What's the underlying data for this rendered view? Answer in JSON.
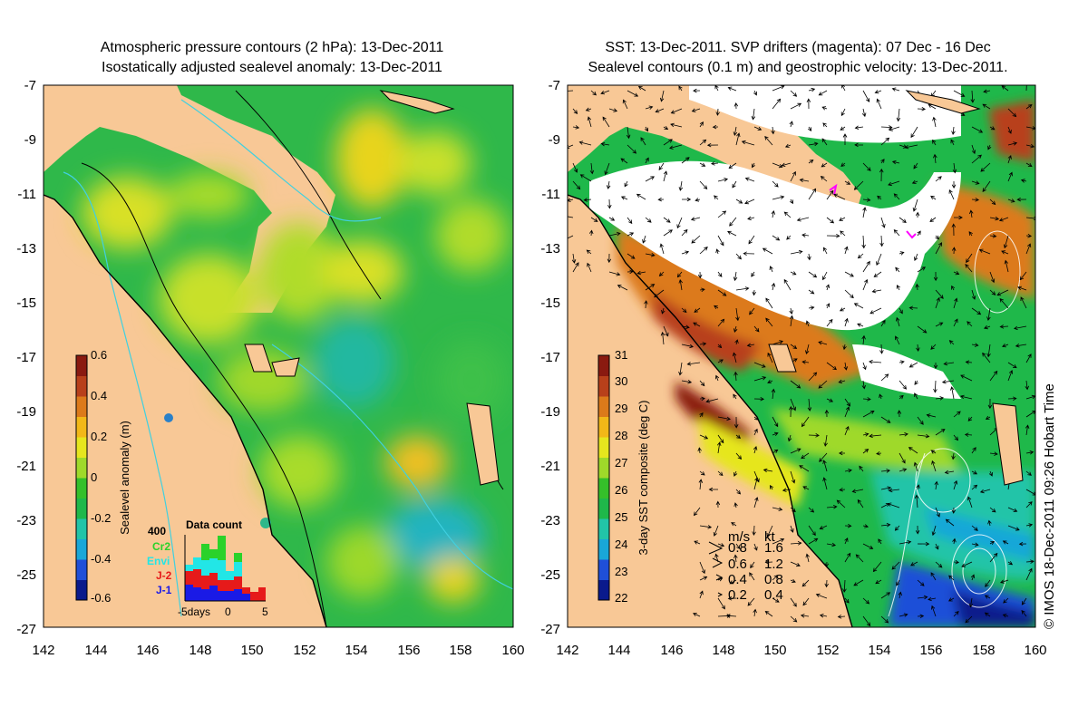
{
  "left_panel": {
    "title_line1": "Atmospheric pressure contours (2 hPa): 13-Dec-2011",
    "title_line2": "Isostatically adjusted sealevel anomaly: 13-Dec-2011",
    "colorbar": {
      "label": "Sealevel anomaly (m)",
      "ticks": [
        "0.6",
        "0.4",
        "0.2",
        "0",
        "-0.2",
        "-0.4",
        "-0.6"
      ],
      "colors": [
        "#0a1a8c",
        "#1f4fd8",
        "#19a7d8",
        "#22c4a8",
        "#1fb84a",
        "#35c02a",
        "#9fd92a",
        "#e6e61e",
        "#f2b818",
        "#dc7a1a",
        "#b8401a",
        "#8a1a10"
      ]
    },
    "data_count": {
      "title": "Data count",
      "max_label": "400",
      "legend": [
        {
          "name": "Cr2",
          "color": "#2ad22a"
        },
        {
          "name": "Envi",
          "color": "#22e6e6"
        },
        {
          "name": "J-2",
          "color": "#e61a1a"
        },
        {
          "name": "J-1",
          "color": "#1a1ae6"
        }
      ],
      "xaxis_labels": [
        "-5days",
        "0",
        "5"
      ]
    }
  },
  "right_panel": {
    "title_line1": "SST: 13-Dec-2011. SVP drifters (magenta): 07 Dec - 16 Dec",
    "title_line2": "Sealevel contours (0.1 m) and geostrophic velocity: 13-Dec-2011.",
    "colorbar": {
      "label": "3-day SST composite (deg C)",
      "ticks": [
        "31",
        "30",
        "29",
        "28",
        "27",
        "26",
        "25",
        "24",
        "23",
        "22"
      ],
      "colors": [
        "#0a1a8c",
        "#1f4fd8",
        "#19a7d8",
        "#22c4a8",
        "#1fb84a",
        "#35c02a",
        "#9fd92a",
        "#e6e61e",
        "#f2b818",
        "#dc7a1a",
        "#b8401a",
        "#8a1a10"
      ]
    },
    "velocity_legend": {
      "header_ms": "m/s",
      "header_kt": "kt",
      "rows": [
        {
          "ms": "0.8",
          "kt": "1.6"
        },
        {
          "ms": "0.6",
          "kt": "1.2"
        },
        {
          "ms": "0.4",
          "kt": "0.8"
        },
        {
          "ms": "0.2",
          "kt": "0.4"
        }
      ]
    }
  },
  "axes": {
    "lon_labels": [
      "142",
      "144",
      "146",
      "148",
      "150",
      "152",
      "154",
      "156",
      "158",
      "160"
    ],
    "lat_labels": [
      "-7",
      "-9",
      "-11",
      "-13",
      "-15",
      "-17",
      "-19",
      "-21",
      "-23",
      "-25",
      "-27"
    ]
  },
  "credit": "© IMOS 18-Dec-2011 09:26 Hobart Time",
  "colors": {
    "land": "#f8c896",
    "coast": "#000000",
    "bathy": "#40d0e0",
    "drifters": "#ff00ff"
  }
}
